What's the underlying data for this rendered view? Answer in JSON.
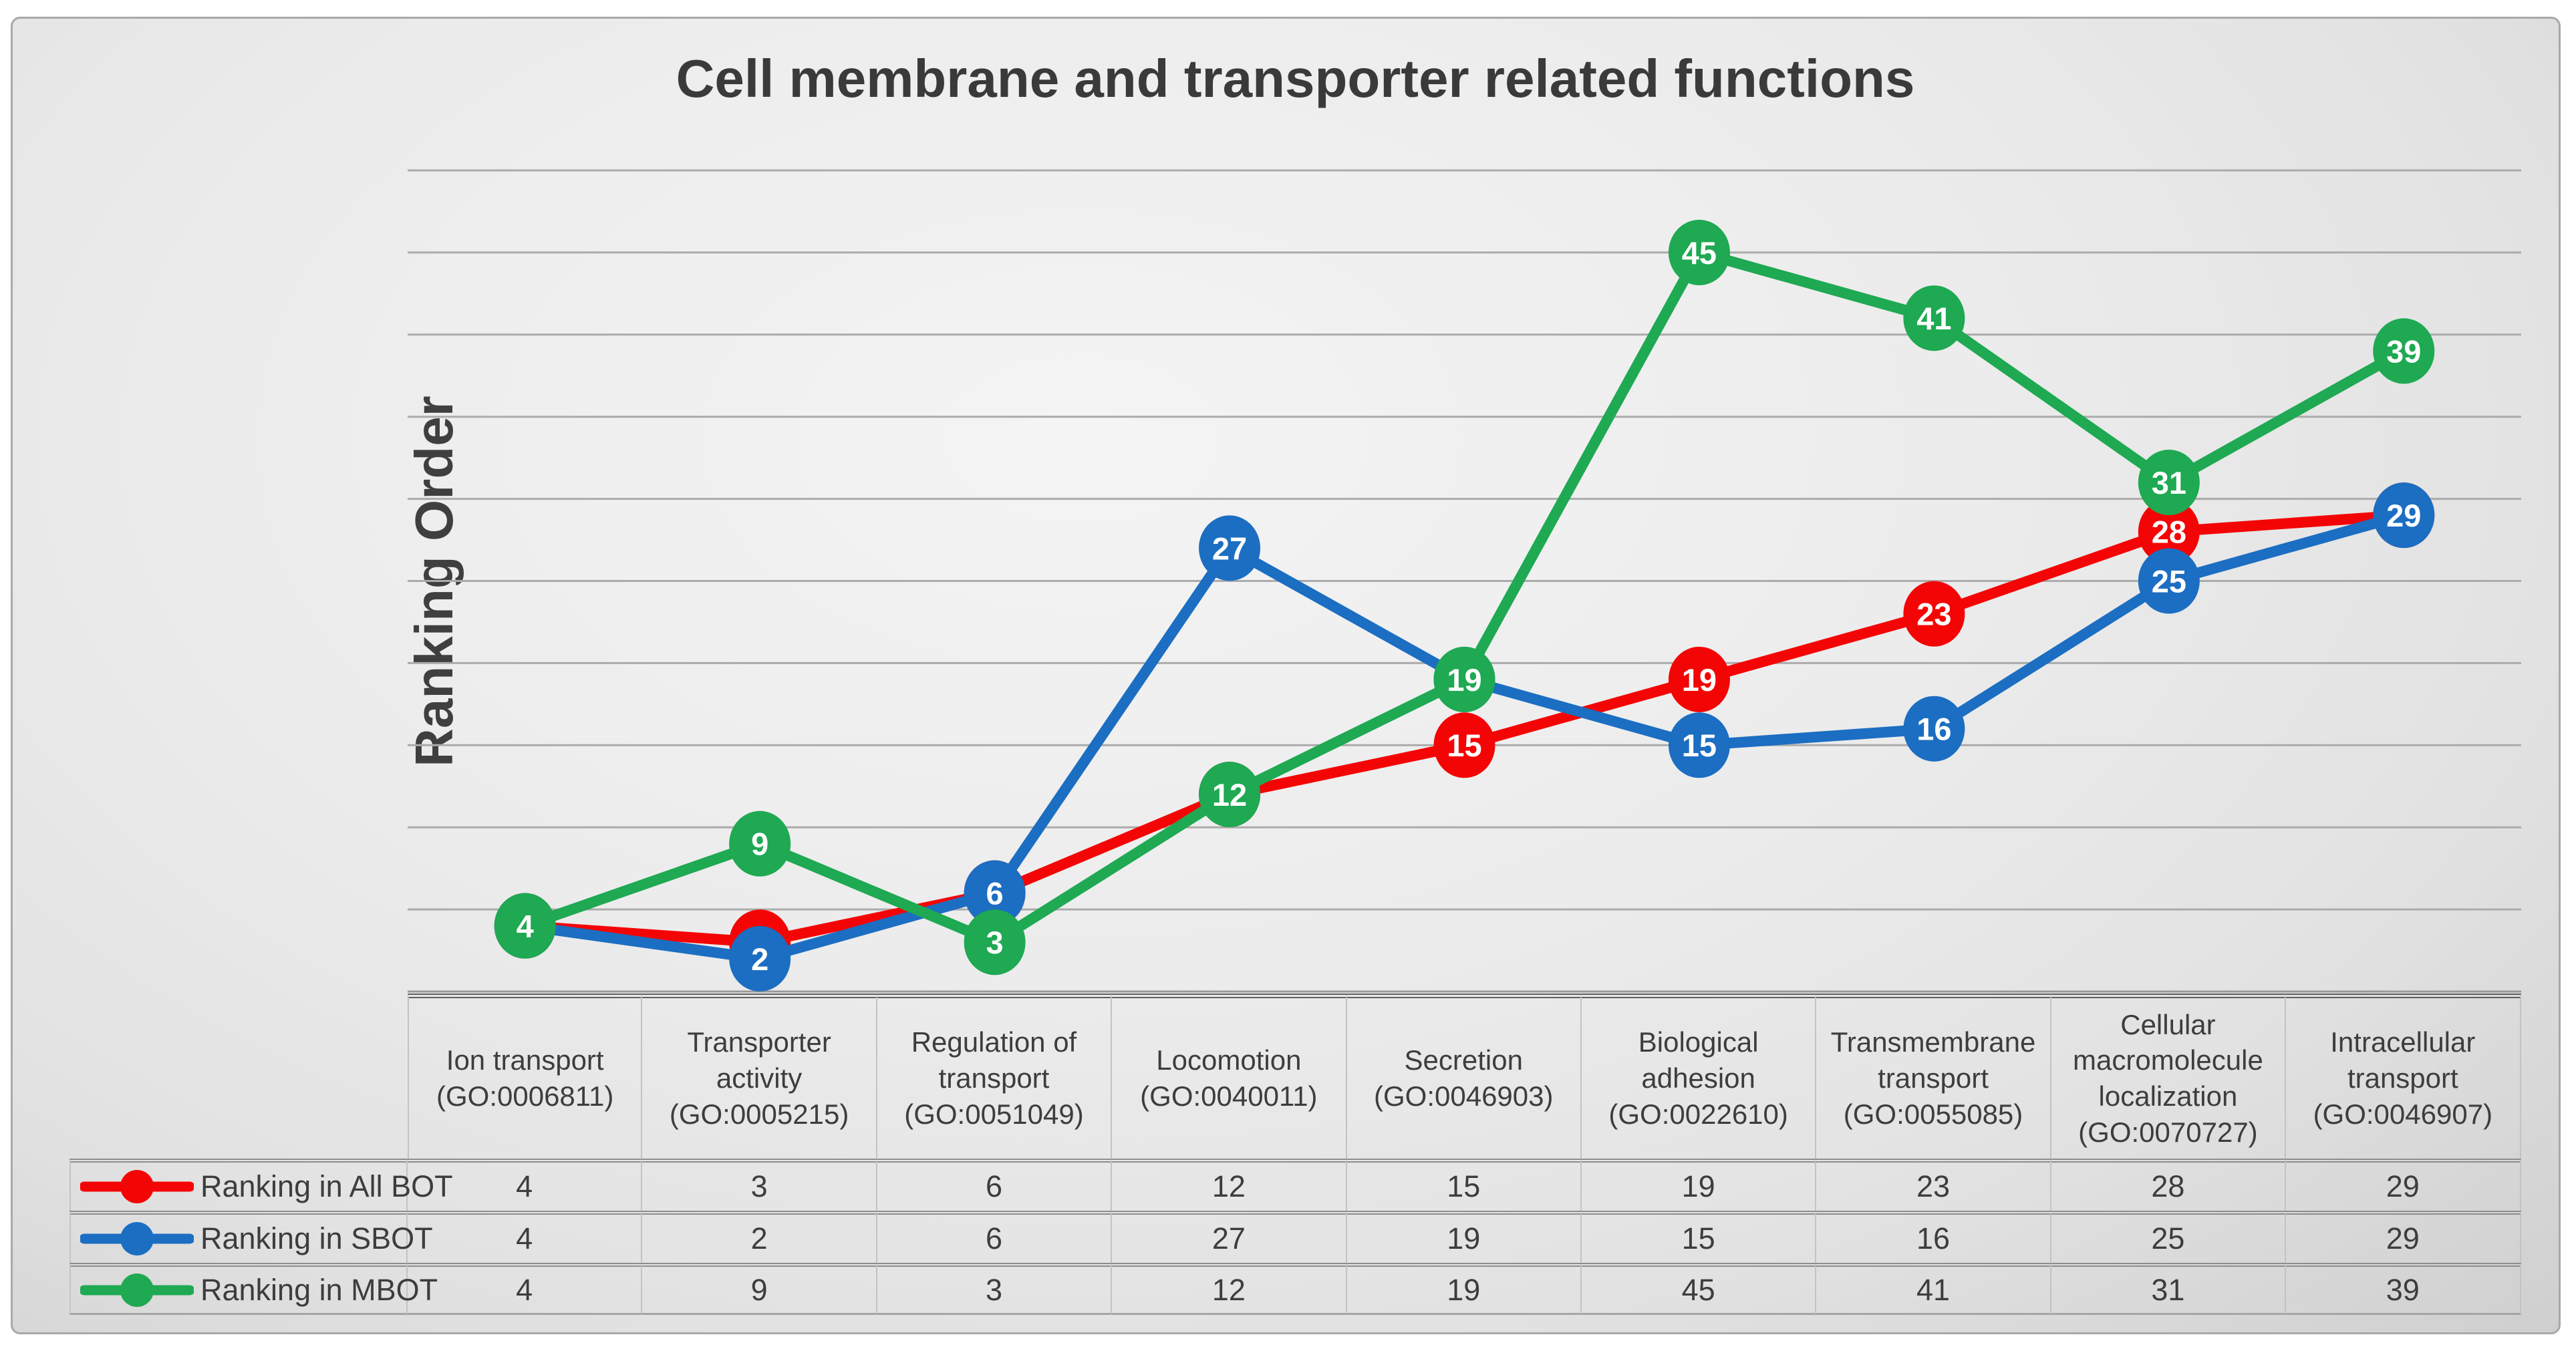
{
  "title": "Cell membrane and transporter related functions",
  "y_axis_title": "Ranking Order",
  "chart_data": {
    "type": "line",
    "title": "Cell membrane and transporter related functions",
    "xlabel": "",
    "ylabel": "Ranking Order",
    "ylim": [
      0,
      50
    ],
    "grid": true,
    "gridline_interval": 5,
    "y_tick_labels_visible": false,
    "legend_position": "left-of-table-rows",
    "data_labels": "on-markers",
    "categories": [
      {
        "name": "Ion transport",
        "go": "(GO:0006811)"
      },
      {
        "name": "Transporter activity",
        "go": "(GO:0005215)"
      },
      {
        "name": "Regulation of transport",
        "go": "(GO:0051049)"
      },
      {
        "name": "Locomotion",
        "go": "(GO:0040011)"
      },
      {
        "name": "Secretion",
        "go": "(GO:0046903)"
      },
      {
        "name": "Biological adhesion",
        "go": "(GO:0022610)"
      },
      {
        "name": "Transmembrane transport",
        "go": "(GO:0055085)"
      },
      {
        "name": "Cellular macromolecule localization",
        "go": "(GO:0070727)"
      },
      {
        "name": "Intracellular transport",
        "go": "(GO:0046907)"
      }
    ],
    "series": [
      {
        "name": "Ranking in All BOT",
        "color": "#f40505",
        "values": [
          4,
          3,
          6,
          12,
          15,
          19,
          23,
          28,
          29
        ]
      },
      {
        "name": "Ranking in SBOT",
        "color": "#1b6ec2",
        "values": [
          4,
          2,
          6,
          27,
          19,
          15,
          16,
          25,
          29
        ]
      },
      {
        "name": "Ranking in MBOT",
        "color": "#1ea952",
        "values": [
          4,
          9,
          3,
          12,
          19,
          45,
          41,
          31,
          39
        ]
      }
    ]
  },
  "style_colors": {
    "gridline": "#ababab",
    "axis_line": "#999999",
    "marker_label": "#ffffff",
    "text": "#3d3d3d",
    "title_text": "#3a3a3a"
  }
}
